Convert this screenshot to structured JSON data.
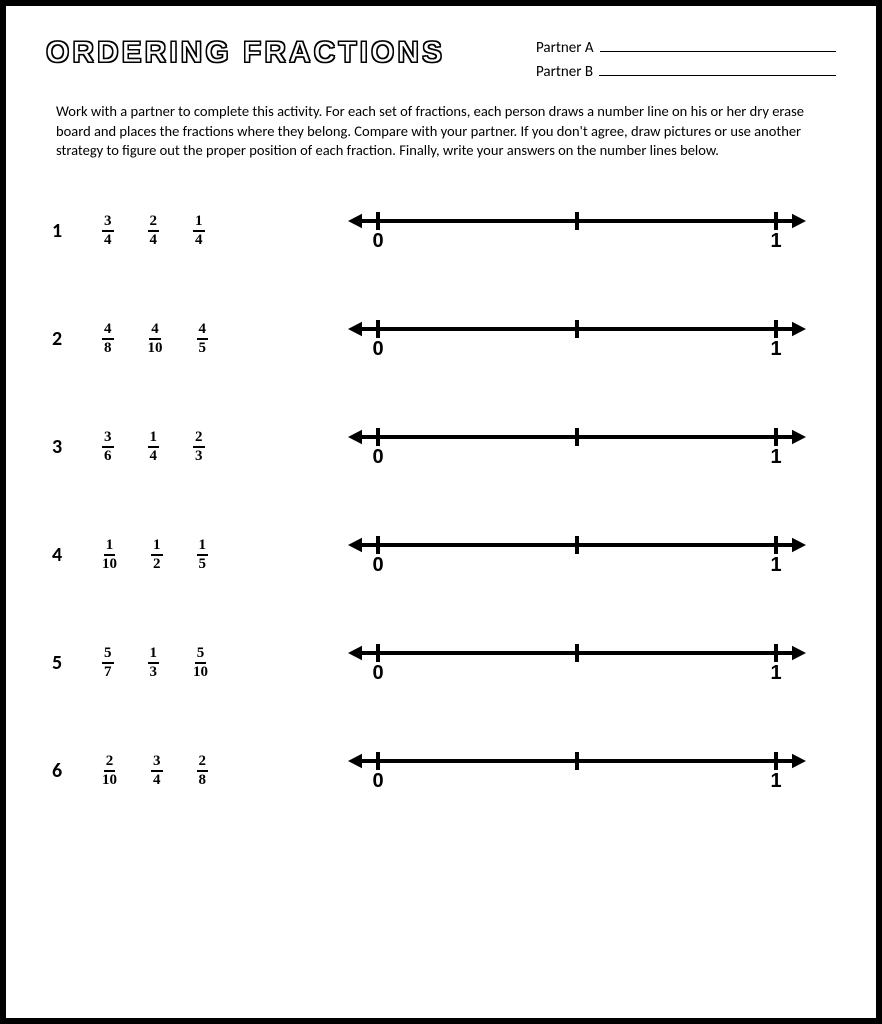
{
  "title": "ORDERING FRACTIONS",
  "partner_labels": {
    "a": "Partner A",
    "b": "Partner B"
  },
  "instructions": "Work with a partner to complete this activity. For each set of fractions, each person draws a number line on his or her dry erase board and places the fractions where they belong. Compare with your partner. If you don't agree, draw pictures or use another strategy to figure out the proper position of each fraction.  Finally, write your answers on the number lines below.",
  "numberline": {
    "start_label": "0",
    "end_label": "1",
    "line_stroke": "#000000",
    "line_width": 4,
    "tick_height": 18,
    "arrow_size": 12,
    "mid_tick": true,
    "label_fontsize": 20,
    "label_offset_y": 26
  },
  "problems": [
    {
      "n": "1",
      "fractions": [
        {
          "num": "3",
          "den": "4"
        },
        {
          "num": "2",
          "den": "4"
        },
        {
          "num": "1",
          "den": "4"
        }
      ]
    },
    {
      "n": "2",
      "fractions": [
        {
          "num": "4",
          "den": "8"
        },
        {
          "num": "4",
          "den": "10"
        },
        {
          "num": "4",
          "den": "5"
        }
      ]
    },
    {
      "n": "3",
      "fractions": [
        {
          "num": "3",
          "den": "6"
        },
        {
          "num": "1",
          "den": "4"
        },
        {
          "num": "2",
          "den": "3"
        }
      ]
    },
    {
      "n": "4",
      "fractions": [
        {
          "num": "1",
          "den": "10"
        },
        {
          "num": "1",
          "den": "2"
        },
        {
          "num": "1",
          "den": "5"
        }
      ]
    },
    {
      "n": "5",
      "fractions": [
        {
          "num": "5",
          "den": "7"
        },
        {
          "num": "1",
          "den": "3"
        },
        {
          "num": "5",
          "den": "10"
        }
      ]
    },
    {
      "n": "6",
      "fractions": [
        {
          "num": "2",
          "den": "10"
        },
        {
          "num": "3",
          "den": "4"
        },
        {
          "num": "2",
          "den": "8"
        }
      ]
    }
  ],
  "colors": {
    "text": "#000000",
    "background": "#ffffff",
    "border": "#000000"
  }
}
